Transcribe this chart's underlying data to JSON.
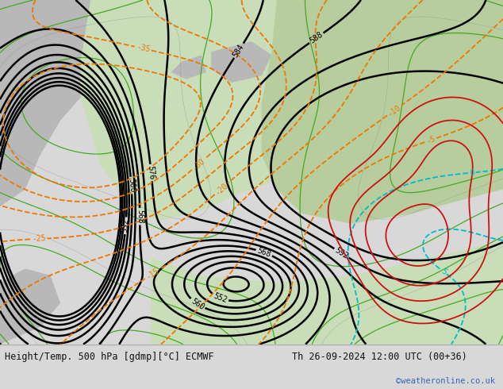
{
  "title_left": "Height/Temp. 500 hPa [gdmp][°C] ECMWF",
  "title_right": "Th 26-09-2024 12:00 UTC (00+36)",
  "watermark": "©weatheronline.co.uk",
  "map_bg": "#b8d4e8",
  "land_green_light": "#c8ddb8",
  "land_green_mid": "#b8cd9e",
  "land_gray": "#b8b8b8",
  "footer_bg": "#d8d8d8",
  "footer_text_color": "#111111",
  "watermark_color": "#3366bb",
  "c_black": "#000000",
  "c_orange": "#ee7700",
  "c_cyan": "#00bbcc",
  "c_green": "#44aa22",
  "c_red": "#cc1111",
  "c_gray": "#888888",
  "fig_width": 6.34,
  "fig_height": 4.9,
  "dpi": 100
}
